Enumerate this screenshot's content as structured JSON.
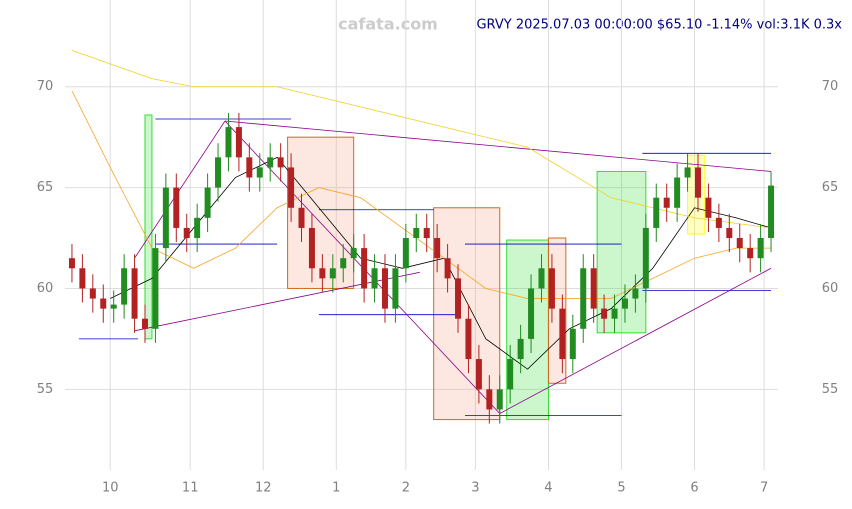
{
  "chart_data": {
    "type": "candlestick",
    "watermark": "cafata.com",
    "title": "GRVY 2025.07.03 00:00:00 $65.10 -1.14% vol:3.1K 0.3x",
    "xlim": [
      -13,
      192
    ],
    "ylim": [
      51,
      74.3
    ],
    "xticks": [
      {
        "value": 0,
        "label": "10"
      },
      {
        "value": 23,
        "label": "11"
      },
      {
        "value": 44,
        "label": "12"
      },
      {
        "value": 65,
        "label": "1"
      },
      {
        "value": 85,
        "label": "2"
      },
      {
        "value": 105,
        "label": "3"
      },
      {
        "value": 126,
        "label": "4"
      },
      {
        "value": 147,
        "label": "5"
      },
      {
        "value": 168,
        "label": "6"
      },
      {
        "value": 188,
        "label": "7"
      }
    ],
    "yticks": [
      55,
      60,
      65,
      70
    ],
    "grid": true,
    "up_color": "#228b22",
    "down_color": "#b22222",
    "x": [
      -11,
      -8,
      -5,
      -2,
      1,
      4,
      7,
      10,
      13,
      16,
      19,
      22,
      25,
      28,
      31,
      34,
      37,
      40,
      43,
      46,
      49,
      52,
      55,
      58,
      61,
      64,
      67,
      70,
      73,
      76,
      79,
      82,
      85,
      88,
      91,
      94,
      97,
      100,
      103,
      106,
      109,
      112,
      115,
      118,
      121,
      124,
      127,
      130,
      133,
      136,
      139,
      142,
      145,
      148,
      151,
      154,
      157,
      160,
      163,
      166,
      169,
      172,
      175,
      178,
      181,
      184,
      187,
      190
    ],
    "open": [
      61.5,
      61,
      60,
      59.5,
      59,
      59.2,
      61,
      58.5,
      58,
      62,
      65,
      63,
      62.5,
      63.5,
      65,
      66.5,
      68,
      66.5,
      65.5,
      66,
      66.5,
      66,
      64,
      63,
      61,
      60.5,
      61,
      61.5,
      62,
      60,
      61,
      59,
      61,
      62.5,
      63,
      62.5,
      61.5,
      60.5,
      58.5,
      56.5,
      55,
      54,
      55,
      56.5,
      57.5,
      60,
      61,
      59,
      56.5,
      58,
      61,
      59,
      58.5,
      59,
      59.5,
      60,
      63,
      64.5,
      64,
      65.5,
      66,
      64.5,
      63.5,
      63,
      62.5,
      62,
      61.5,
      62.5
    ],
    "high": [
      62.2,
      61.7,
      60.7,
      60.2,
      59.9,
      61.7,
      61.7,
      59.2,
      62.7,
      65.7,
      65.7,
      63.7,
      64.2,
      65.7,
      67.2,
      68.7,
      68.7,
      67.2,
      66.7,
      67.2,
      67.2,
      66.7,
      64.7,
      63.7,
      61.7,
      61.7,
      62.2,
      62.7,
      62.7,
      61.7,
      61.7,
      61.7,
      63.2,
      63.7,
      63.7,
      63.2,
      62.2,
      61.2,
      59.2,
      57.2,
      55.7,
      55.7,
      57.2,
      58.2,
      60.7,
      61.7,
      61.7,
      59.7,
      58.7,
      61.7,
      61.7,
      59.7,
      59.7,
      60.2,
      60.7,
      63.7,
      65.2,
      65.2,
      66.2,
      66.7,
      66.7,
      65.2,
      64.2,
      63.7,
      63.2,
      62.7,
      63.2,
      65.8
    ],
    "low": [
      60.3,
      59.3,
      58.8,
      58.3,
      58.3,
      58.5,
      57.8,
      57.3,
      57.3,
      61.3,
      62.3,
      61.8,
      61.8,
      62.8,
      64.3,
      65.8,
      65.8,
      64.8,
      64.8,
      65.3,
      65.3,
      63.3,
      62.3,
      60.3,
      59.8,
      59.8,
      60.3,
      60.8,
      59.3,
      59.3,
      58.3,
      58.3,
      60.3,
      61.8,
      61.8,
      60.8,
      59.8,
      57.8,
      55.8,
      54.3,
      53.3,
      53.3,
      54.3,
      55.8,
      56.8,
      59.3,
      58.3,
      55.8,
      55.8,
      57.3,
      58.3,
      57.8,
      57.8,
      58.3,
      58.8,
      59.3,
      62.3,
      63.3,
      63.3,
      64.8,
      63.8,
      62.8,
      62.3,
      61.8,
      61.3,
      60.8,
      60.8,
      61.8
    ],
    "close": [
      61,
      60,
      59.5,
      59,
      59.2,
      61,
      58.5,
      58,
      62,
      65,
      63,
      62.5,
      63.5,
      65,
      66.5,
      68,
      66.5,
      65.5,
      66,
      66.5,
      66,
      64,
      63,
      61,
      60.5,
      61,
      61.5,
      62,
      60,
      61,
      59,
      61,
      62.5,
      63,
      62.5,
      61.5,
      60.5,
      58.5,
      56.5,
      55,
      54,
      55,
      56.5,
      57.5,
      60,
      61,
      59,
      56.5,
      58,
      61,
      59,
      58.5,
      59,
      59.5,
      60,
      63,
      64.5,
      64,
      65.5,
      66,
      64.5,
      63.5,
      63,
      62.5,
      62,
      61.5,
      62.5,
      65.1
    ],
    "lines": [
      {
        "color": "#000000",
        "x": [
          0,
          12,
          24,
          36,
          48,
          60,
          72,
          84,
          96,
          108,
          120,
          132,
          144,
          156,
          168,
          180,
          190
        ],
        "values": [
          59.5,
          60.5,
          63,
          65.5,
          66.5,
          64,
          61.5,
          61,
          61.5,
          57.5,
          56,
          58,
          59,
          61,
          64,
          63.5,
          63
        ]
      },
      {
        "color": "#f5a623",
        "x": [
          -11,
          0,
          12,
          24,
          36,
          48,
          60,
          72,
          84,
          96,
          108,
          120,
          132,
          144,
          156,
          168,
          180,
          190
        ],
        "values": [
          69.8,
          66,
          62,
          61,
          62,
          64,
          65,
          64.5,
          63,
          61.5,
          60,
          59.5,
          59.5,
          59.5,
          60.5,
          61.5,
          62,
          62
        ]
      },
      {
        "color": "#f2d024",
        "x": [
          -11,
          12,
          24,
          48,
          72,
          96,
          120,
          144,
          168,
          190
        ],
        "values": [
          71.8,
          70.4,
          70,
          70,
          69,
          68,
          67,
          64.5,
          63.5,
          63
        ]
      }
    ],
    "zones": [
      {
        "x0": 10,
        "x1": 12,
        "y0": 57.5,
        "y1": 68.6,
        "color": "#33dd33"
      },
      {
        "x0": 51,
        "x1": 70,
        "y0": 60,
        "y1": 67.5,
        "color": "#f4a582"
      },
      {
        "x0": 93,
        "x1": 112,
        "y0": 53.5,
        "y1": 64,
        "color": "#f4a582"
      },
      {
        "x0": 114,
        "x1": 126,
        "y0": 53.5,
        "y1": 62.4,
        "color": "#33dd33"
      },
      {
        "x0": 126,
        "x1": 131,
        "y0": 55.3,
        "y1": 62.5,
        "color": "#f4a582"
      },
      {
        "x0": 140,
        "x1": 154,
        "y0": 57.8,
        "y1": 65.8,
        "color": "#33dd33"
      },
      {
        "x0": 166,
        "x1": 171,
        "y0": 62.7,
        "y1": 66.6,
        "color": "#ffff00"
      }
    ],
    "levels": [
      {
        "x0": -9,
        "x1": 8,
        "y": 57.5
      },
      {
        "x0": 13,
        "x1": 48,
        "y": 62.2
      },
      {
        "x0": 13,
        "x1": 52,
        "y": 68.4
      },
      {
        "x0": 60,
        "x1": 93,
        "y": 63.9
      },
      {
        "x0": 60,
        "x1": 100,
        "y": 58.7
      },
      {
        "x0": 102,
        "x1": 147,
        "y": 62.2
      },
      {
        "x0": 102,
        "x1": 147,
        "y": 53.7
      },
      {
        "x0": 153,
        "x1": 190,
        "y": 66.7
      },
      {
        "x0": 153,
        "x1": 190,
        "y": 59.9
      }
    ],
    "trends": [
      {
        "x0": 7,
        "y0": 57.9,
        "x1": 89,
        "y1": 60.8
      },
      {
        "x0": 7,
        "y0": 61.5,
        "x1": 33,
        "y1": 68.3
      },
      {
        "x0": 33,
        "x1": 112,
        "y0": 68.3,
        "y1": 53.8
      },
      {
        "x0": 112,
        "x1": 190,
        "y0": 53.8,
        "y1": 61
      },
      {
        "x0": 33,
        "x1": 190,
        "y0": 68.3,
        "y1": 65.8
      }
    ]
  }
}
